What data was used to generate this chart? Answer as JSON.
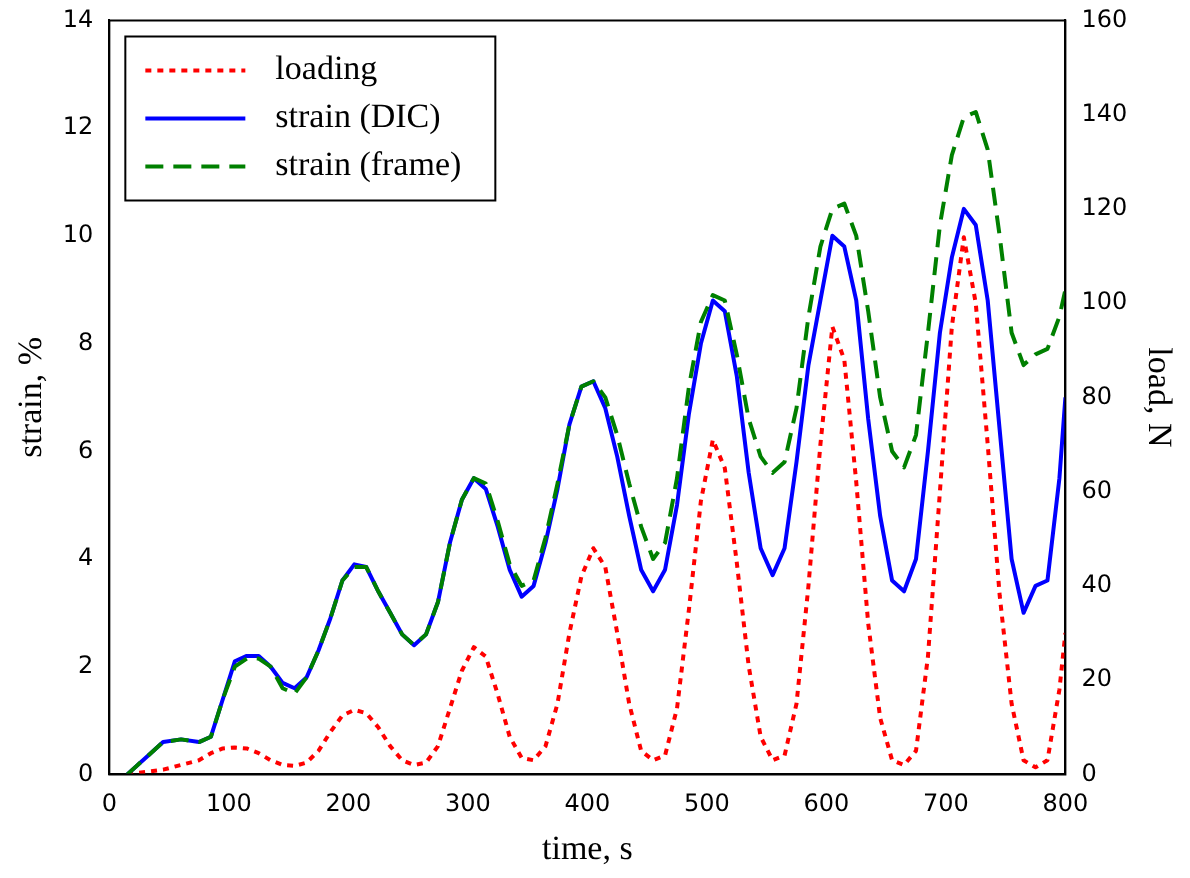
{
  "chart_data": {
    "type": "line",
    "xlabel": "time, s",
    "ylabel": "strain, %",
    "y2label": "load, N",
    "x": [
      15,
      30,
      45,
      60,
      75,
      85,
      95,
      105,
      115,
      125,
      135,
      145,
      155,
      165,
      175,
      185,
      195,
      205,
      215,
      225,
      235,
      245,
      255,
      265,
      275,
      285,
      295,
      305,
      315,
      325,
      335,
      345,
      355,
      365,
      375,
      385,
      395,
      405,
      415,
      425,
      435,
      445,
      455,
      465,
      475,
      485,
      495,
      505,
      515,
      525,
      535,
      545,
      555,
      565,
      575,
      585,
      595,
      605,
      615,
      625,
      635,
      645,
      655,
      665,
      675,
      685,
      695,
      705,
      715,
      725,
      735,
      745,
      755,
      765,
      775,
      785,
      795,
      800
    ],
    "xlim": [
      0,
      800
    ],
    "xticks": [
      0,
      100,
      200,
      300,
      400,
      500,
      600,
      700,
      800
    ],
    "ylim": [
      0,
      14
    ],
    "yticks": [
      0,
      2,
      4,
      6,
      8,
      10,
      12,
      14
    ],
    "y2lim": [
      0,
      160
    ],
    "y2ticks": [
      0,
      20,
      40,
      60,
      80,
      100,
      120,
      140,
      160
    ],
    "grid": false,
    "legend": "top left",
    "marker": "none",
    "series": [
      {
        "name": "loading",
        "color": "#ff0000",
        "axis": "y2",
        "line_style": "dotted",
        "values": [
          0,
          0.5,
          1,
          2,
          3,
          4.5,
          5.5,
          5.7,
          5.5,
          4.5,
          3,
          2,
          1.8,
          2.5,
          5,
          9,
          12.5,
          13.7,
          13,
          10,
          6,
          3,
          2,
          2.5,
          6,
          14,
          22,
          27,
          25,
          17,
          8,
          3.5,
          3,
          6,
          15,
          30,
          42,
          48,
          44,
          30,
          15,
          5,
          3,
          4,
          14,
          35,
          58,
          71,
          65,
          45,
          23,
          8,
          3,
          4,
          15,
          40,
          70,
          95,
          88,
          62,
          32,
          12,
          3,
          2,
          5,
          25,
          60,
          95,
          114,
          100,
          70,
          38,
          15,
          3,
          1.5,
          3,
          18,
          30
        ]
      },
      {
        "name": "strain (DIC)",
        "color": "#0000ff",
        "line_style": "solid",
        "values": [
          0,
          0.3,
          0.6,
          0.65,
          0.6,
          0.7,
          1.4,
          2.1,
          2.2,
          2.2,
          2,
          1.7,
          1.6,
          1.8,
          2.3,
          2.9,
          3.6,
          3.9,
          3.85,
          3.4,
          3,
          2.6,
          2.4,
          2.6,
          3.2,
          4.3,
          5.1,
          5.5,
          5.3,
          4.6,
          3.8,
          3.3,
          3.5,
          4.3,
          5.3,
          6.5,
          7.2,
          7.3,
          6.8,
          5.9,
          4.8,
          3.8,
          3.4,
          3.8,
          5,
          6.7,
          8,
          8.8,
          8.6,
          7.4,
          5.6,
          4.2,
          3.7,
          4.2,
          5.8,
          7.6,
          8.8,
          10,
          9.8,
          8.8,
          6.6,
          4.8,
          3.6,
          3.4,
          4,
          6,
          8.2,
          9.6,
          10.5,
          10.2,
          8.8,
          6.4,
          4,
          3,
          3.5,
          3.6,
          5.5,
          7
        ]
      },
      {
        "name": "strain (frame)",
        "color": "#008000",
        "line_style": "dashed",
        "values": [
          0,
          0.3,
          0.6,
          0.65,
          0.6,
          0.7,
          1.4,
          2.0,
          2.15,
          2.15,
          2,
          1.6,
          1.5,
          1.8,
          2.3,
          2.9,
          3.6,
          3.85,
          3.85,
          3.4,
          3,
          2.6,
          2.4,
          2.6,
          3.2,
          4.3,
          5.1,
          5.5,
          5.4,
          4.7,
          3.9,
          3.5,
          3.6,
          4.4,
          5.4,
          6.5,
          7.2,
          7.3,
          7,
          6.3,
          5.4,
          4.6,
          4.0,
          4.3,
          5.5,
          7.2,
          8.4,
          8.9,
          8.8,
          7.8,
          6.6,
          5.9,
          5.6,
          5.8,
          6.8,
          8.5,
          9.8,
          10.5,
          10.6,
          10.0,
          8.6,
          7.0,
          6.0,
          5.7,
          6.3,
          8.2,
          10.2,
          11.5,
          12.2,
          12.3,
          11.6,
          10.0,
          8.2,
          7.6,
          7.8,
          7.9,
          8.5,
          9.0
        ]
      }
    ]
  }
}
